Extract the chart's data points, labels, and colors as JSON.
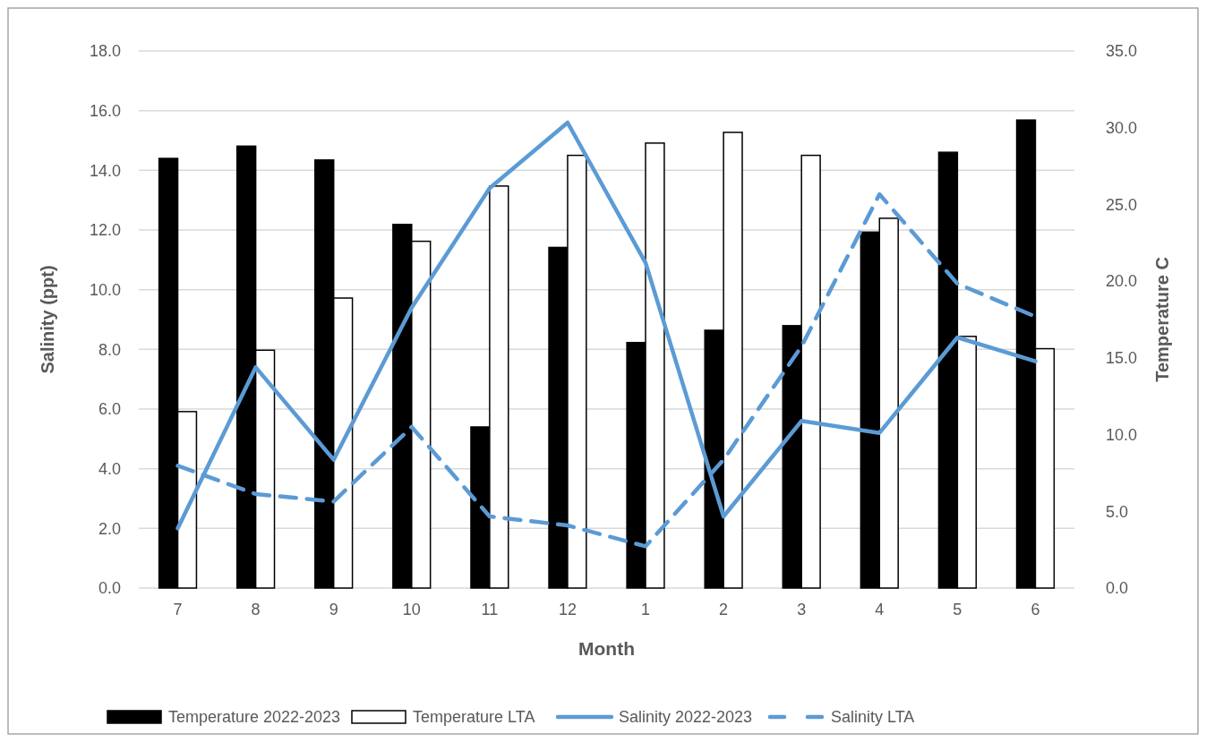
{
  "chart_data": {
    "type": "bar",
    "xlabel": "Month",
    "ylabel": "Salinity (ppt)",
    "y2label": "Temperature C",
    "categories": [
      "7",
      "8",
      "9",
      "10",
      "11",
      "12",
      "1",
      "2",
      "3",
      "4",
      "5",
      "6"
    ],
    "series": [
      {
        "name": "Temperature 2022-2023",
        "axis": "y2",
        "color": "#000000",
        "values": [
          28.0,
          28.8,
          27.9,
          23.7,
          10.5,
          22.2,
          16.0,
          16.8,
          17.1,
          23.2,
          28.4,
          30.5
        ]
      },
      {
        "name": "Temperature LTA",
        "axis": "y2",
        "color": "#ffffff",
        "values": [
          11.5,
          15.5,
          18.9,
          22.6,
          26.2,
          28.2,
          29.0,
          29.7,
          28.2,
          24.1,
          16.4,
          15.6
        ]
      },
      {
        "name": "Salinity 2022-2023",
        "type": "line",
        "color": "#5b9bd5",
        "line_style": "solid",
        "values": [
          2.0,
          7.4,
          4.3,
          9.4,
          13.4,
          15.6,
          10.9,
          2.4,
          5.6,
          5.2,
          8.4,
          7.6
        ]
      },
      {
        "name": "Salinity LTA",
        "type": "line",
        "color": "#5b9bd5",
        "line_style": "dashed",
        "values": [
          4.1,
          3.15,
          2.9,
          5.4,
          2.4,
          2.1,
          1.4,
          4.3,
          8.1,
          13.2,
          10.2,
          9.1
        ]
      }
    ],
    "ylim": [
      0,
      18
    ],
    "yticks": [
      {
        "value": 0,
        "label": "0.0"
      },
      {
        "value": 2,
        "label": "2.0"
      },
      {
        "value": 4,
        "label": "4.0"
      },
      {
        "value": 6,
        "label": "6.0"
      },
      {
        "value": 8,
        "label": "8.0"
      },
      {
        "value": 10,
        "label": "10.0"
      },
      {
        "value": 12,
        "label": "12.0"
      },
      {
        "value": 14,
        "label": "14.0"
      },
      {
        "value": 16,
        "label": "16.0"
      },
      {
        "value": 18,
        "label": "18.0"
      }
    ],
    "y2lim": [
      0,
      35
    ],
    "y2ticks": [
      {
        "value": 0,
        "label": "0.0"
      },
      {
        "value": 5,
        "label": "5.0"
      },
      {
        "value": 10,
        "label": "10.0"
      },
      {
        "value": 15,
        "label": "15.0"
      },
      {
        "value": 20,
        "label": "20.0"
      },
      {
        "value": 25,
        "label": "25.0"
      },
      {
        "value": 30,
        "label": "30.0"
      },
      {
        "value": 35,
        "label": "35.0"
      }
    ],
    "grid": "y",
    "legend": "bottom",
    "marker": "none"
  }
}
